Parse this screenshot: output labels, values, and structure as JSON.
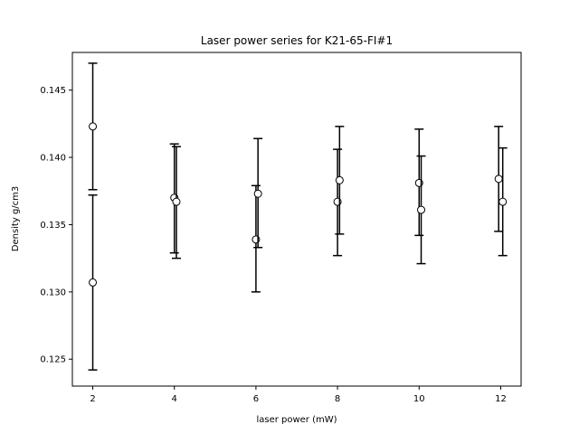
{
  "chart_data": {
    "type": "scatter",
    "title": "Laser power series for K21-65-FI#1",
    "xlabel": "laser power (mW)",
    "ylabel": "Density g/cm3",
    "xlim": [
      1.5,
      12.5
    ],
    "ylim": [
      0.123,
      0.1478
    ],
    "xticks": [
      2,
      4,
      6,
      8,
      10,
      12
    ],
    "xtick_labels": [
      "2",
      "4",
      "6",
      "8",
      "10",
      "12"
    ],
    "yticks": [
      0.125,
      0.13,
      0.135,
      0.14,
      0.145
    ],
    "ytick_labels": [
      "0.125",
      "0.130",
      "0.135",
      "0.140",
      "0.145"
    ],
    "grid": false,
    "marker": "open-circle",
    "error_bars": true,
    "points": [
      {
        "x": 2.0,
        "y": 0.1423,
        "yerr_low": 0.1376,
        "yerr_high": 0.147
      },
      {
        "x": 2.0,
        "y": 0.1307,
        "yerr_low": 0.1242,
        "yerr_high": 0.1372
      },
      {
        "x": 4.0,
        "y": 0.137,
        "yerr_low": 0.1329,
        "yerr_high": 0.141
      },
      {
        "x": 4.05,
        "y": 0.1367,
        "yerr_low": 0.1325,
        "yerr_high": 0.1408
      },
      {
        "x": 6.0,
        "y": 0.1339,
        "yerr_low": 0.13,
        "yerr_high": 0.1379
      },
      {
        "x": 6.05,
        "y": 0.1373,
        "yerr_low": 0.1333,
        "yerr_high": 0.1414
      },
      {
        "x": 8.0,
        "y": 0.1367,
        "yerr_low": 0.1327,
        "yerr_high": 0.1406
      },
      {
        "x": 8.05,
        "y": 0.1383,
        "yerr_low": 0.1343,
        "yerr_high": 0.1423
      },
      {
        "x": 10.0,
        "y": 0.1381,
        "yerr_low": 0.1342,
        "yerr_high": 0.1421
      },
      {
        "x": 10.05,
        "y": 0.1361,
        "yerr_low": 0.1321,
        "yerr_high": 0.1401
      },
      {
        "x": 11.95,
        "y": 0.1384,
        "yerr_low": 0.1345,
        "yerr_high": 0.1423
      },
      {
        "x": 12.05,
        "y": 0.1367,
        "yerr_low": 0.1327,
        "yerr_high": 0.1407
      }
    ]
  }
}
